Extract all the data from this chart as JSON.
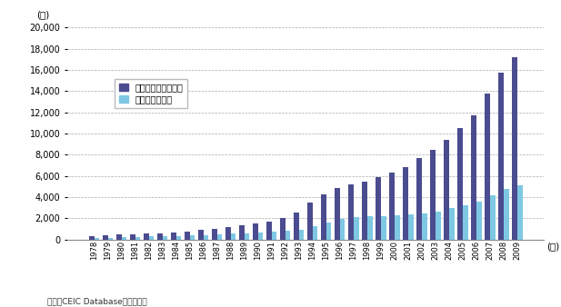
{
  "years": [
    1978,
    1979,
    1980,
    1981,
    1982,
    1983,
    1984,
    1985,
    1986,
    1987,
    1988,
    1989,
    1990,
    1991,
    1992,
    1993,
    1994,
    1995,
    1996,
    1997,
    1998,
    1999,
    2000,
    2001,
    2002,
    2003,
    2004,
    2005,
    2006,
    2007,
    2008,
    2009
  ],
  "urban": [
    343,
    387,
    478,
    500,
    535,
    575,
    652,
    740,
    900,
    1002,
    1181,
    1376,
    1510,
    1700,
    2027,
    2577,
    3496,
    4283,
    4839,
    5160,
    5425,
    5854,
    6280,
    6860,
    7703,
    8472,
    9422,
    10493,
    11759,
    13786,
    15781,
    17175
  ],
  "rural": [
    134,
    160,
    191,
    223,
    270,
    310,
    355,
    398,
    424,
    463,
    545,
    602,
    686,
    709,
    784,
    922,
    1221,
    1578,
    1926,
    2090,
    2162,
    2210,
    2253,
    2366,
    2476,
    2622,
    2936,
    3255,
    3587,
    4140,
    4761,
    5153
  ],
  "urban_color": "#4b4b8f",
  "rural_color": "#7ec8e3",
  "ylabel": "(元)",
  "xlabel": "(年)",
  "ylim": [
    0,
    20000
  ],
  "yticks": [
    0,
    2000,
    4000,
    6000,
    8000,
    10000,
    12000,
    14000,
    16000,
    18000,
    20000
  ],
  "legend_urban": "都市住民可処分所得",
  "legend_rural": "農村住民純收入",
  "source_text": "資料：CEIC Databaseから作成。",
  "background_color": "#ffffff",
  "grid_color": "#aaaaaa",
  "fig_width": 6.17,
  "fig_height": 3.38,
  "dpi": 100
}
